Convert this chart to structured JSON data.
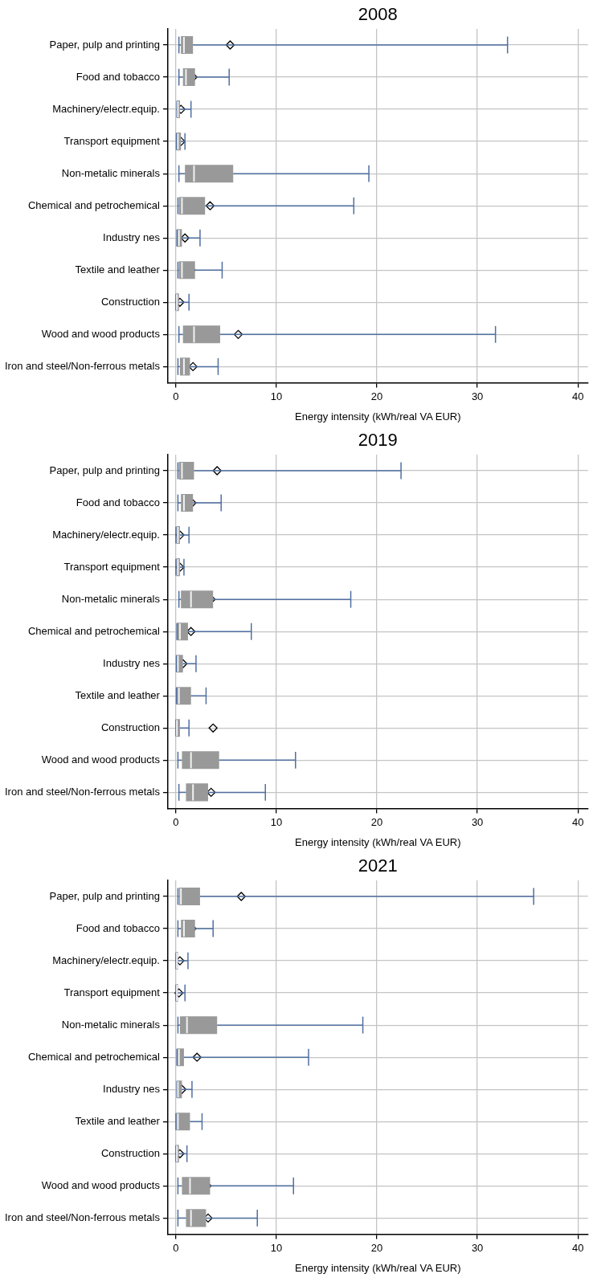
{
  "chart_data": [
    {
      "type": "box",
      "orientation": "horizontal",
      "title": "2008",
      "xlabel": "Energy intensity (kWh/real VA EUR)",
      "grid": true,
      "xlim": [
        -0.8,
        41
      ],
      "xticks": [
        0,
        10,
        20,
        30,
        40
      ],
      "categories": [
        "Paper, pulp and printing",
        "Food and tobacco",
        "Machinery/electr.equip.",
        "Transport equipment",
        "Non-metalic minerals",
        "Chemical and petrochemical",
        "Industry nes",
        "Textile and leather",
        "Construction",
        "Wood and wood products",
        "Iron and steel/Non-ferrous metals"
      ],
      "series": [
        {
          "color": "#999999",
          "boxes": [
            {
              "low": 0.3,
              "q1": 0.5,
              "median": 0.8,
              "q3": 1.7,
              "high": 33,
              "mean": 5.4
            },
            {
              "low": 0.3,
              "q1": 0.7,
              "median": 1.0,
              "q3": 1.9,
              "high": 5.3,
              "mean": 1.7
            },
            {
              "low": 0.1,
              "q1": 0.1,
              "median": 0.2,
              "q3": 0.4,
              "high": 1.5,
              "mean": 0.5
            },
            {
              "low": 0.05,
              "q1": 0.05,
              "median": 0.2,
              "q3": 0.5,
              "high": 0.9,
              "mean": 0.5
            },
            {
              "low": 0.3,
              "q1": 0.9,
              "median": 1.8,
              "q3": 5.7,
              "high": 19.2,
              "mean": 4.5
            },
            {
              "low": 0.2,
              "q1": 0.3,
              "median": 0.6,
              "q3": 2.9,
              "high": 17.7,
              "mean": 3.4
            },
            {
              "low": 0.1,
              "q1": 0.1,
              "median": 0.3,
              "q3": 0.6,
              "high": 2.4,
              "mean": 0.9
            },
            {
              "low": 0.2,
              "q1": 0.3,
              "median": 0.6,
              "q3": 1.9,
              "high": 4.6,
              "mean": 1.5
            },
            {
              "low": 0,
              "q1": 0,
              "median": 0.1,
              "q3": 0.3,
              "high": 1.3,
              "mean": 0.4
            },
            {
              "low": 0.3,
              "q1": 0.7,
              "median": 1.8,
              "q3": 4.4,
              "high": 31.8,
              "mean": 6.2
            },
            {
              "low": 0.2,
              "q1": 0.4,
              "median": 0.8,
              "q3": 1.4,
              "high": 4.2,
              "mean": 1.7
            }
          ]
        }
      ]
    },
    {
      "type": "box",
      "orientation": "horizontal",
      "title": "2019",
      "xlabel": "Energy intensity (kWh/real VA EUR)",
      "grid": true,
      "xlim": [
        -0.8,
        41
      ],
      "xticks": [
        0,
        10,
        20,
        30,
        40
      ],
      "categories": [
        "Paper, pulp and printing",
        "Food and tobacco",
        "Machinery/electr.equip.",
        "Transport equipment",
        "Non-metalic minerals",
        "Chemical and petrochemical",
        "Industry nes",
        "Textile and leather",
        "Construction",
        "Wood and wood products",
        "Iron and steel/Non-ferrous metals"
      ],
      "series": [
        {
          "color": "#999999",
          "boxes": [
            {
              "low": 0.2,
              "q1": 0.3,
              "median": 0.6,
              "q3": 1.8,
              "high": 22.4,
              "mean": 4.1
            },
            {
              "low": 0.2,
              "q1": 0.5,
              "median": 0.8,
              "q3": 1.7,
              "high": 4.5,
              "mean": 1.6
            },
            {
              "low": 0,
              "q1": 0,
              "median": 0.2,
              "q3": 0.4,
              "high": 1.3,
              "mean": 0.4
            },
            {
              "low": 0,
              "q1": 0,
              "median": 0.2,
              "q3": 0.4,
              "high": 0.8,
              "mean": 0.4
            },
            {
              "low": 0.3,
              "q1": 0.5,
              "median": 1.5,
              "q3": 3.7,
              "high": 17.4,
              "mean": 3.5
            },
            {
              "low": 0.1,
              "q1": 0.1,
              "median": 0.4,
              "q3": 1.2,
              "high": 7.5,
              "mean": 1.5
            },
            {
              "low": 0.05,
              "q1": 0.05,
              "median": 0.2,
              "q3": 0.7,
              "high": 2.0,
              "mean": 0.7
            },
            {
              "low": 0.05,
              "q1": 0.05,
              "median": 0.3,
              "q3": 1.5,
              "high": 3.0,
              "mean": 1.0
            },
            {
              "low": 0,
              "q1": 0,
              "median": 0.1,
              "q3": 0.4,
              "high": 1.3,
              "mean": 3.7
            },
            {
              "low": 0.2,
              "q1": 0.6,
              "median": 1.5,
              "q3": 4.3,
              "high": 11.9,
              "mean": 3.6
            },
            {
              "low": 0.3,
              "q1": 1.0,
              "median": 1.7,
              "q3": 3.2,
              "high": 8.9,
              "mean": 3.5
            }
          ]
        }
      ]
    },
    {
      "type": "box",
      "orientation": "horizontal",
      "title": "2021",
      "xlabel": "Energy intensity (kWh/real VA EUR)",
      "grid": true,
      "xlim": [
        -0.8,
        41
      ],
      "xticks": [
        0,
        10,
        20,
        30,
        40
      ],
      "categories": [
        "Paper, pulp and printing",
        "Food and tobacco",
        "Machinery/electr.equip.",
        "Transport equipment",
        "Non-metalic minerals",
        "Chemical and petrochemical",
        "Industry nes",
        "Textile and leather",
        "Construction",
        "Wood and wood products",
        "Iron and steel/Non-ferrous metals"
      ],
      "series": [
        {
          "color": "#999999",
          "boxes": [
            {
              "low": 0.2,
              "q1": 0.3,
              "median": 0.5,
              "q3": 2.4,
              "high": 35.6,
              "mean": 6.5
            },
            {
              "low": 0.2,
              "q1": 0.5,
              "median": 0.8,
              "q3": 1.9,
              "high": 3.7,
              "mean": 1.6
            },
            {
              "low": 0,
              "q1": 0,
              "median": 0.1,
              "q3": 0.2,
              "high": 1.2,
              "mean": 0.4
            },
            {
              "low": 0,
              "q1": 0,
              "median": 0.1,
              "q3": 0.2,
              "high": 0.9,
              "mean": 0.3
            },
            {
              "low": 0.2,
              "q1": 0.4,
              "median": 1.1,
              "q3": 4.1,
              "high": 18.6,
              "mean": 3.5
            },
            {
              "low": 0.1,
              "q1": 0.1,
              "median": 0.3,
              "q3": 0.8,
              "high": 13.2,
              "mean": 2.1
            },
            {
              "low": 0.1,
              "q1": 0.1,
              "median": 0.2,
              "q3": 0.6,
              "high": 1.6,
              "mean": 0.6
            },
            {
              "low": 0,
              "q1": 0,
              "median": 0.2,
              "q3": 1.4,
              "high": 2.6,
              "mean": 0.9
            },
            {
              "low": 0,
              "q1": 0,
              "median": 0.1,
              "q3": 0.3,
              "high": 1.1,
              "mean": 0.4
            },
            {
              "low": 0.2,
              "q1": 0.6,
              "median": 1.4,
              "q3": 3.4,
              "high": 11.7,
              "mean": 3.1
            },
            {
              "low": 0.2,
              "q1": 1.0,
              "median": 1.5,
              "q3": 3.0,
              "high": 8.1,
              "mean": 3.2
            }
          ]
        }
      ]
    }
  ]
}
